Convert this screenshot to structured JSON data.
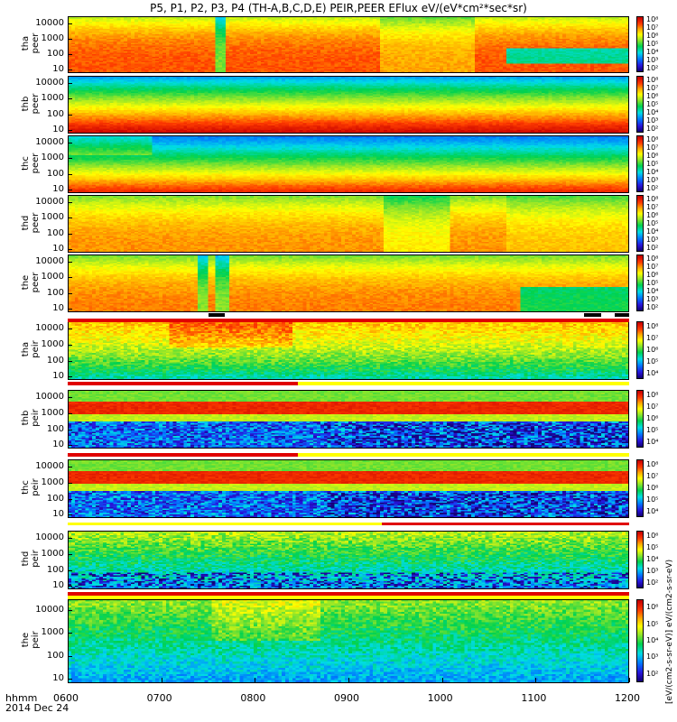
{
  "title": "P5, P1, P2, P3, P4 (TH-A,B,C,D,E) PEIR,PEER EFlux eV/(eV*cm²*sec*sr)",
  "footer": {
    "xlabel": "hhmm",
    "date": "2014 Dec 24"
  },
  "right_label": "[eV/(cm2-s-sr-eV)] eV/(cm2-s-sr-eV)",
  "chart_data": {
    "type": "heatmap",
    "x_ticks": [
      "0600",
      "0700",
      "0800",
      "0900",
      "1000",
      "1100",
      "1200"
    ],
    "y_ticks": [
      "10",
      "100",
      "1000",
      "10000"
    ],
    "y_scale": "log",
    "x_range": [
      "0600",
      "1200"
    ],
    "panels": [
      {
        "probe": "tha",
        "species": "peer",
        "label_top": "tha",
        "label_bottom": "peer",
        "colorbar": [
          "10²",
          "10³",
          "10⁴",
          "10⁵",
          "10⁶",
          "10⁷",
          "10⁸"
        ]
      },
      {
        "probe": "thb",
        "species": "peer",
        "label_top": "thb",
        "label_bottom": "peer",
        "colorbar": [
          "10²",
          "10³",
          "10⁴",
          "10⁵",
          "10⁶",
          "10⁷",
          "10⁸"
        ]
      },
      {
        "probe": "thc",
        "species": "peer",
        "label_top": "thc",
        "label_bottom": "peer",
        "colorbar": [
          "10²",
          "10³",
          "10⁴",
          "10⁵",
          "10⁶",
          "10⁷",
          "10⁸"
        ]
      },
      {
        "probe": "thd",
        "species": "peer",
        "label_top": "thd",
        "label_bottom": "peer",
        "colorbar": [
          "10²",
          "10³",
          "10⁴",
          "10⁵",
          "10⁶",
          "10⁷",
          "10⁸"
        ]
      },
      {
        "probe": "the",
        "species": "peer",
        "label_top": "the",
        "label_bottom": "peer",
        "colorbar": [
          "10²",
          "10³",
          "10⁴",
          "10⁵",
          "10⁶",
          "10⁷",
          "10⁸"
        ]
      },
      {
        "probe": "tha",
        "species": "peir",
        "label_top": "tha",
        "label_bottom": "peir",
        "colorbar": [
          "10⁴",
          "10⁵",
          "10⁶",
          "10⁷",
          "10⁸"
        ]
      },
      {
        "probe": "thb",
        "species": "peir",
        "label_top": "thb",
        "label_bottom": "peir",
        "colorbar": [
          "10⁴",
          "10⁵",
          "10⁶",
          "10⁷",
          "10⁸"
        ]
      },
      {
        "probe": "thc",
        "species": "peir",
        "label_top": "thc",
        "label_bottom": "peir",
        "colorbar": [
          "10⁴",
          "10⁵",
          "10⁶",
          "10⁷",
          "10⁸"
        ]
      },
      {
        "probe": "thd",
        "species": "peir",
        "label_top": "thd",
        "label_bottom": "peir",
        "colorbar": [
          "10²",
          "10³",
          "10⁴",
          "10⁵",
          "10⁶"
        ]
      },
      {
        "probe": "the",
        "species": "peir",
        "label_top": "the",
        "label_bottom": "peir",
        "colorbar": [
          "10²",
          "10³",
          "10⁴",
          "10⁵",
          "10⁶"
        ]
      }
    ]
  }
}
